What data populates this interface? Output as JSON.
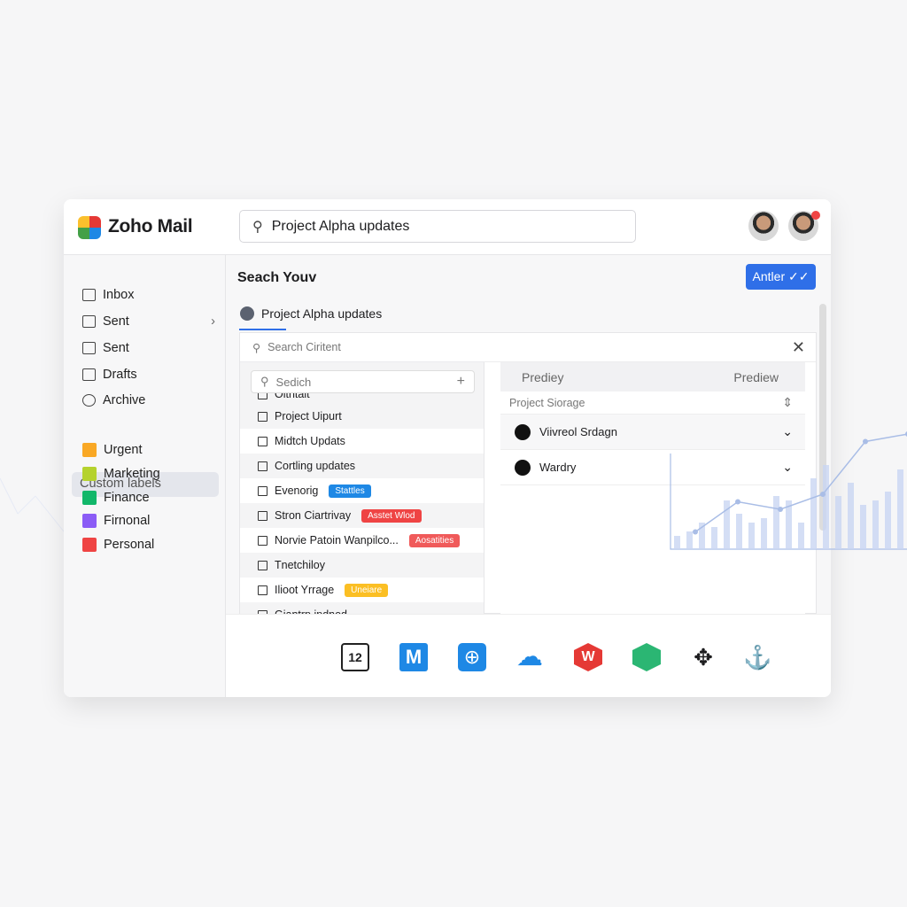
{
  "header": {
    "app_name": "Zoho Mail",
    "search_value": "Project Alpha updates"
  },
  "sidebar": {
    "items": [
      {
        "label": "Inbox",
        "icon": "folder-icon"
      },
      {
        "label": "Sent",
        "icon": "grid-icon",
        "has_chevron": true
      },
      {
        "label": "Sent",
        "icon": "folder-icon"
      },
      {
        "label": "Drafts",
        "icon": "draft-icon"
      },
      {
        "label": "Archive",
        "icon": "archive-icon"
      }
    ],
    "custom_labels_title": "Custom labels",
    "labels": [
      {
        "label": "Urgent",
        "color": "#f9a825"
      },
      {
        "label": "Marketing",
        "color": "#b5d22e"
      },
      {
        "label": "Finance",
        "color": "#12b76a"
      },
      {
        "label": "Firnonal",
        "color": "#8b5cf6"
      },
      {
        "label": "Personal",
        "color": "#ef4444"
      }
    ]
  },
  "main": {
    "title": "Seach Youv",
    "action_button": "Antler ✓✓",
    "tab": "Project Alpha updates",
    "panel": {
      "search_placeholder": "Search Ciritent",
      "inner_search_placeholder": "Sedich",
      "rows": [
        {
          "label": "Oitntalt"
        },
        {
          "label": "Project Uipurt"
        },
        {
          "label": "Midtch Updats"
        },
        {
          "label": "Cortling updates"
        },
        {
          "label": "Evenorig",
          "tag": "Stattles",
          "tag_color": "#1e88e5"
        },
        {
          "label": "Stron Ciartrivay",
          "tag": "Asstet Wlod",
          "tag_color": "#ef4444"
        },
        {
          "label": "Norvie Patoin Wanpilco...",
          "tag": "Aosatities",
          "tag_color": "#f05a5a"
        },
        {
          "label": "Tnetchiloy"
        },
        {
          "label": "Ilioot Yrrage",
          "tag": "Uneiare",
          "tag_color": "#fbbf24"
        },
        {
          "label": "Giantrp ipdnod"
        }
      ],
      "preview_headers": [
        "Prediey",
        "Prediew"
      ],
      "preview_select": "Project Siorage",
      "preview_items": [
        {
          "label": "Viivreol Srdagn"
        },
        {
          "label": "Wardry"
        }
      ]
    }
  },
  "dock": {
    "apps": [
      "calendar-icon",
      "mail-icon",
      "web-icon",
      "cloud-icon",
      "writer-icon",
      "layers-icon",
      "connect-icon",
      "anchor-icon"
    ],
    "calendar_day": "12"
  },
  "overlay_chart": {
    "line": [
      0.35,
      0.55,
      0.5,
      0.6,
      0.95,
      1.0
    ],
    "bars": [
      0.15,
      0.2,
      0.3,
      0.25,
      0.55,
      0.4,
      0.3,
      0.35,
      0.6,
      0.55,
      0.3,
      0.8,
      0.95,
      0.6,
      0.75,
      0.5,
      0.55,
      0.65,
      0.9
    ]
  }
}
